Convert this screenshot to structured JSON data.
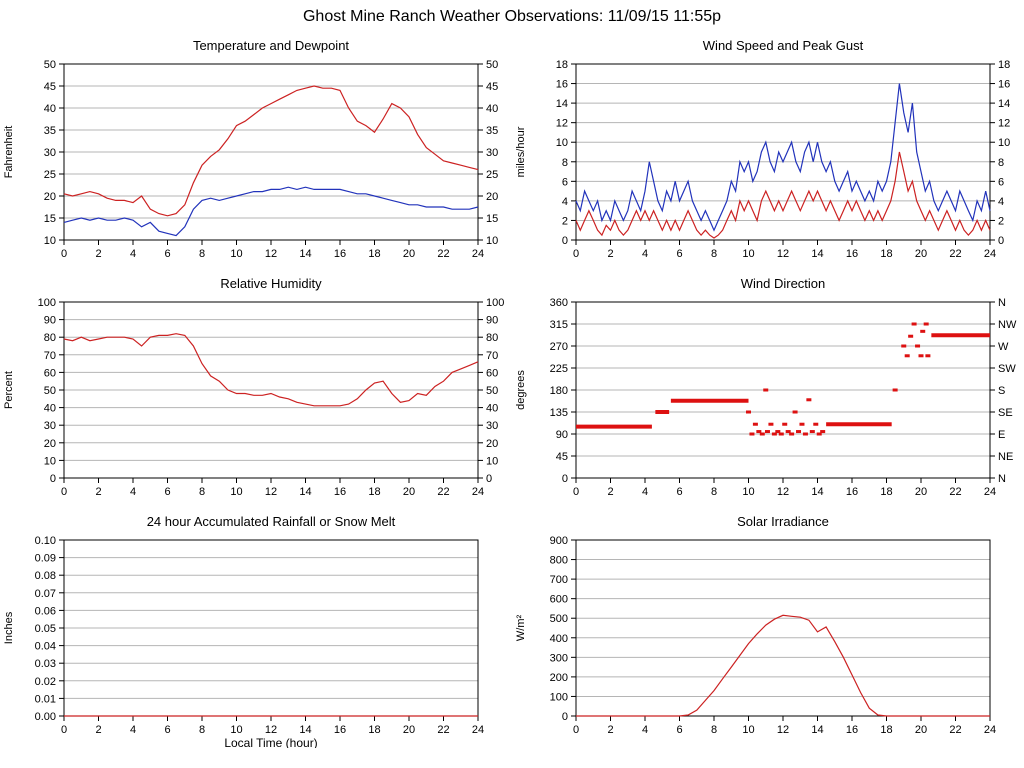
{
  "page": {
    "title": "Ghost Mine Ranch Weather Observations: 11/09/15 11:55p"
  },
  "chart_data": [
    {
      "type": "line",
      "title": "Temperature and Dewpoint",
      "ylabel": "Fahrenheit",
      "ylim": [
        10,
        50
      ],
      "ytick_step": 5,
      "xlim": [
        0,
        24
      ],
      "xtick_step": 2,
      "mirror_right": true,
      "grid": "horizontal",
      "series": [
        {
          "name": "Temperature",
          "color": "#cc2222",
          "x_start": 0,
          "x_step": 0.5,
          "values": [
            20.5,
            20,
            20.5,
            21,
            20.5,
            19.5,
            19,
            19,
            18.5,
            20,
            17,
            16,
            15.5,
            16,
            18,
            23,
            27,
            29,
            30.5,
            33,
            36,
            37,
            38.5,
            40,
            41,
            42,
            43,
            44,
            44.5,
            45,
            44.5,
            44.5,
            44,
            40,
            37,
            36,
            34.5,
            37.5,
            41,
            40,
            38,
            34,
            31,
            29.5,
            28,
            27.5,
            27,
            26.5,
            26
          ]
        },
        {
          "name": "Dewpoint",
          "color": "#2233bb",
          "x_start": 0,
          "x_step": 0.5,
          "values": [
            14,
            14.5,
            15,
            14.5,
            15,
            14.5,
            14.5,
            15,
            14.5,
            13,
            14,
            12,
            11.5,
            11,
            13,
            17,
            19,
            19.5,
            19,
            19.5,
            20,
            20.5,
            21,
            21,
            21.5,
            21.5,
            22,
            21.5,
            22,
            21.5,
            21.5,
            21.5,
            21.5,
            21,
            20.5,
            20.5,
            20,
            19.5,
            19,
            18.5,
            18,
            18,
            17.5,
            17.5,
            17.5,
            17,
            17,
            17,
            17.5
          ]
        }
      ]
    },
    {
      "type": "line",
      "title": "Wind Speed and Peak Gust",
      "ylabel": "miles/hour",
      "ylim": [
        0,
        18
      ],
      "ytick_step": 2,
      "xlim": [
        0,
        24
      ],
      "xtick_step": 2,
      "mirror_right": true,
      "grid": "horizontal",
      "series": [
        {
          "name": "Peak Gust",
          "color": "#2233bb",
          "x_start": 0,
          "x_step": 0.25,
          "values": [
            4,
            3,
            5,
            4,
            3,
            4,
            2,
            3,
            2,
            4,
            3,
            2,
            3,
            5,
            4,
            3,
            5,
            8,
            6,
            4,
            3,
            5,
            4,
            6,
            4,
            5,
            6,
            4,
            3,
            2,
            3,
            2,
            1,
            2,
            3,
            4,
            6,
            5,
            8,
            7,
            8,
            6,
            7,
            9,
            10,
            8,
            7,
            9,
            8,
            9,
            10,
            8,
            7,
            9,
            10,
            8,
            10,
            8,
            7,
            8,
            6,
            5,
            6,
            7,
            5,
            6,
            5,
            4,
            5,
            4,
            6,
            5,
            6,
            8,
            12,
            16,
            13,
            11,
            14,
            9,
            7,
            5,
            6,
            4,
            3,
            4,
            5,
            4,
            3,
            5,
            4,
            3,
            2,
            4,
            3,
            5,
            3
          ]
        },
        {
          "name": "Wind Speed",
          "color": "#cc2222",
          "x_start": 0,
          "x_step": 0.25,
          "values": [
            2,
            1,
            2,
            3,
            2,
            1,
            0.5,
            1.5,
            1,
            2,
            1,
            0.5,
            1,
            2,
            3,
            2,
            3,
            2,
            3,
            2,
            1,
            2,
            1,
            2,
            1,
            2,
            3,
            2,
            1,
            0.5,
            1,
            0.5,
            0.2,
            0.5,
            1,
            2,
            3,
            2,
            4,
            3,
            4,
            3,
            2,
            4,
            5,
            4,
            3,
            4,
            3,
            4,
            5,
            4,
            3,
            4,
            5,
            4,
            5,
            4,
            3,
            4,
            3,
            2,
            3,
            4,
            3,
            4,
            3,
            2,
            3,
            2,
            3,
            2,
            3,
            4,
            6,
            9,
            7,
            5,
            6,
            4,
            3,
            2,
            3,
            2,
            1,
            2,
            3,
            2,
            1,
            2,
            1,
            0.5,
            1,
            2,
            1,
            2,
            1
          ]
        }
      ]
    },
    {
      "type": "line",
      "title": "Relative Humidity",
      "ylabel": "Percent",
      "ylim": [
        0,
        100
      ],
      "ytick_step": 10,
      "xlim": [
        0,
        24
      ],
      "xtick_step": 2,
      "mirror_right": true,
      "grid": "horizontal",
      "series": [
        {
          "name": "Relative Humidity",
          "color": "#cc2222",
          "x_start": 0,
          "x_step": 0.5,
          "values": [
            79,
            78,
            80,
            78,
            79,
            80,
            80,
            80,
            79,
            75,
            80,
            81,
            81,
            82,
            81,
            75,
            65,
            58,
            55,
            50,
            48,
            48,
            47,
            47,
            48,
            46,
            45,
            43,
            42,
            41,
            41,
            41,
            41,
            42,
            45,
            50,
            54,
            55,
            48,
            43,
            44,
            48,
            47,
            52,
            55,
            60,
            62,
            64,
            66
          ]
        }
      ]
    },
    {
      "type": "scatter",
      "title": "Wind Direction",
      "ylabel": "degrees",
      "ylim": [
        0,
        360
      ],
      "ytick_step": 45,
      "xlim": [
        0,
        24
      ],
      "xtick_step": 2,
      "right_labels": [
        "N",
        "NE",
        "E",
        "SE",
        "S",
        "SW",
        "W",
        "NW",
        "N"
      ],
      "grid": "horizontal",
      "series": [
        {
          "name": "Wind Direction",
          "color": "#dd1111",
          "segments": [
            [
              0,
              4.4,
              105
            ],
            [
              4.6,
              5.4,
              135
            ],
            [
              5.5,
              10,
              158
            ],
            [
              14.5,
              18.3,
              110
            ],
            [
              20.6,
              24,
              292
            ]
          ],
          "points": [
            [
              10,
              135
            ],
            [
              10.2,
              90
            ],
            [
              10.4,
              110
            ],
            [
              10.6,
              95
            ],
            [
              10.8,
              90
            ],
            [
              11,
              180
            ],
            [
              11.1,
              95
            ],
            [
              11.3,
              110
            ],
            [
              11.5,
              90
            ],
            [
              11.7,
              95
            ],
            [
              11.9,
              90
            ],
            [
              12.1,
              110
            ],
            [
              12.3,
              95
            ],
            [
              12.5,
              90
            ],
            [
              12.7,
              135
            ],
            [
              12.9,
              95
            ],
            [
              13.1,
              110
            ],
            [
              13.3,
              90
            ],
            [
              13.5,
              160
            ],
            [
              13.7,
              95
            ],
            [
              13.9,
              110
            ],
            [
              14.1,
              90
            ],
            [
              14.3,
              95
            ],
            [
              18.5,
              180
            ],
            [
              19,
              270
            ],
            [
              19.2,
              250
            ],
            [
              19.4,
              290
            ],
            [
              19.6,
              315
            ],
            [
              19.8,
              270
            ],
            [
              20,
              250
            ],
            [
              20.1,
              300
            ],
            [
              20.3,
              315
            ],
            [
              20.4,
              250
            ]
          ]
        }
      ]
    },
    {
      "type": "line",
      "title": "24 hour Accumulated Rainfall or Snow Melt",
      "ylabel": "Inches",
      "xlabel": "Local Time (hour)",
      "ylim": [
        0,
        0.1
      ],
      "ytick_step": 0.01,
      "ytick_decimals": 2,
      "xlim": [
        0,
        24
      ],
      "xtick_step": 2,
      "grid": "horizontal",
      "series": [
        {
          "name": "Rainfall",
          "color": "#cc2222",
          "x_start": 0,
          "x_step": 24,
          "values": [
            0,
            0
          ]
        }
      ]
    },
    {
      "type": "line",
      "title": "Solar Irradiance",
      "ylabel": "W/m²",
      "ylim": [
        0,
        900
      ],
      "ytick_step": 100,
      "xlim": [
        0,
        24
      ],
      "xtick_step": 2,
      "grid": "horizontal",
      "series": [
        {
          "name": "Solar Irradiance",
          "color": "#cc2222",
          "x_start": 0,
          "x_step": 0.5,
          "values": [
            0,
            0,
            0,
            0,
            0,
            0,
            0,
            0,
            0,
            0,
            0,
            0,
            0,
            5,
            30,
            80,
            130,
            190,
            250,
            310,
            370,
            420,
            465,
            495,
            515,
            510,
            505,
            490,
            430,
            455,
            380,
            300,
            210,
            120,
            40,
            5,
            0,
            0,
            0,
            0,
            0,
            0,
            0,
            0,
            0,
            0,
            0,
            0,
            0
          ]
        }
      ]
    }
  ]
}
